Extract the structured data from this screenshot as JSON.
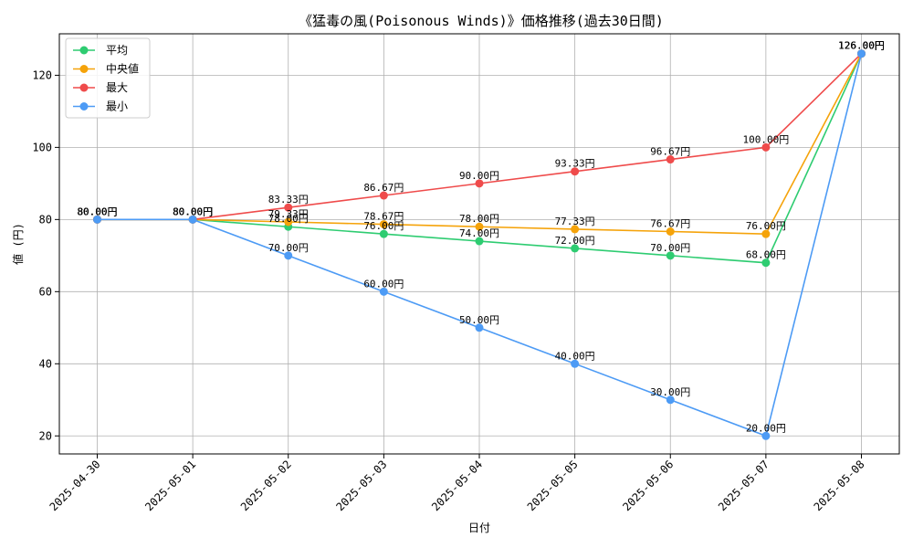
{
  "chart_data": {
    "type": "line",
    "title": "《猛毒の風(Poisonous Winds)》価格推移(過去30日間)",
    "xlabel": "日付",
    "ylabel": "値 (円)",
    "categories": [
      "2025-04-30",
      "2025-05-01",
      "2025-05-02",
      "2025-05-03",
      "2025-05-04",
      "2025-05-05",
      "2025-05-06",
      "2025-05-07",
      "2025-05-08"
    ],
    "ylim": [
      15,
      131.5
    ],
    "yticks": [
      20,
      40,
      60,
      80,
      100,
      120
    ],
    "grid": true,
    "legend_position": "top-left",
    "label_suffix": "円",
    "series": [
      {
        "name": "平均",
        "color": "#2ecc71",
        "values": [
          80.0,
          80.0,
          78.0,
          76.0,
          74.0,
          72.0,
          70.0,
          68.0,
          126.0
        ]
      },
      {
        "name": "中央値",
        "color": "#f5a30a",
        "values": [
          80.0,
          80.0,
          79.33,
          78.67,
          78.0,
          77.33,
          76.67,
          76.0,
          126.0
        ]
      },
      {
        "name": "最大",
        "color": "#ef4b4b",
        "values": [
          80.0,
          80.0,
          83.33,
          86.67,
          90.0,
          93.33,
          96.67,
          100.0,
          126.0
        ]
      },
      {
        "name": "最小",
        "color": "#4d9bf5",
        "values": [
          80.0,
          80.0,
          70.0,
          60.0,
          50.0,
          40.0,
          30.0,
          20.0,
          126.0
        ]
      }
    ]
  }
}
